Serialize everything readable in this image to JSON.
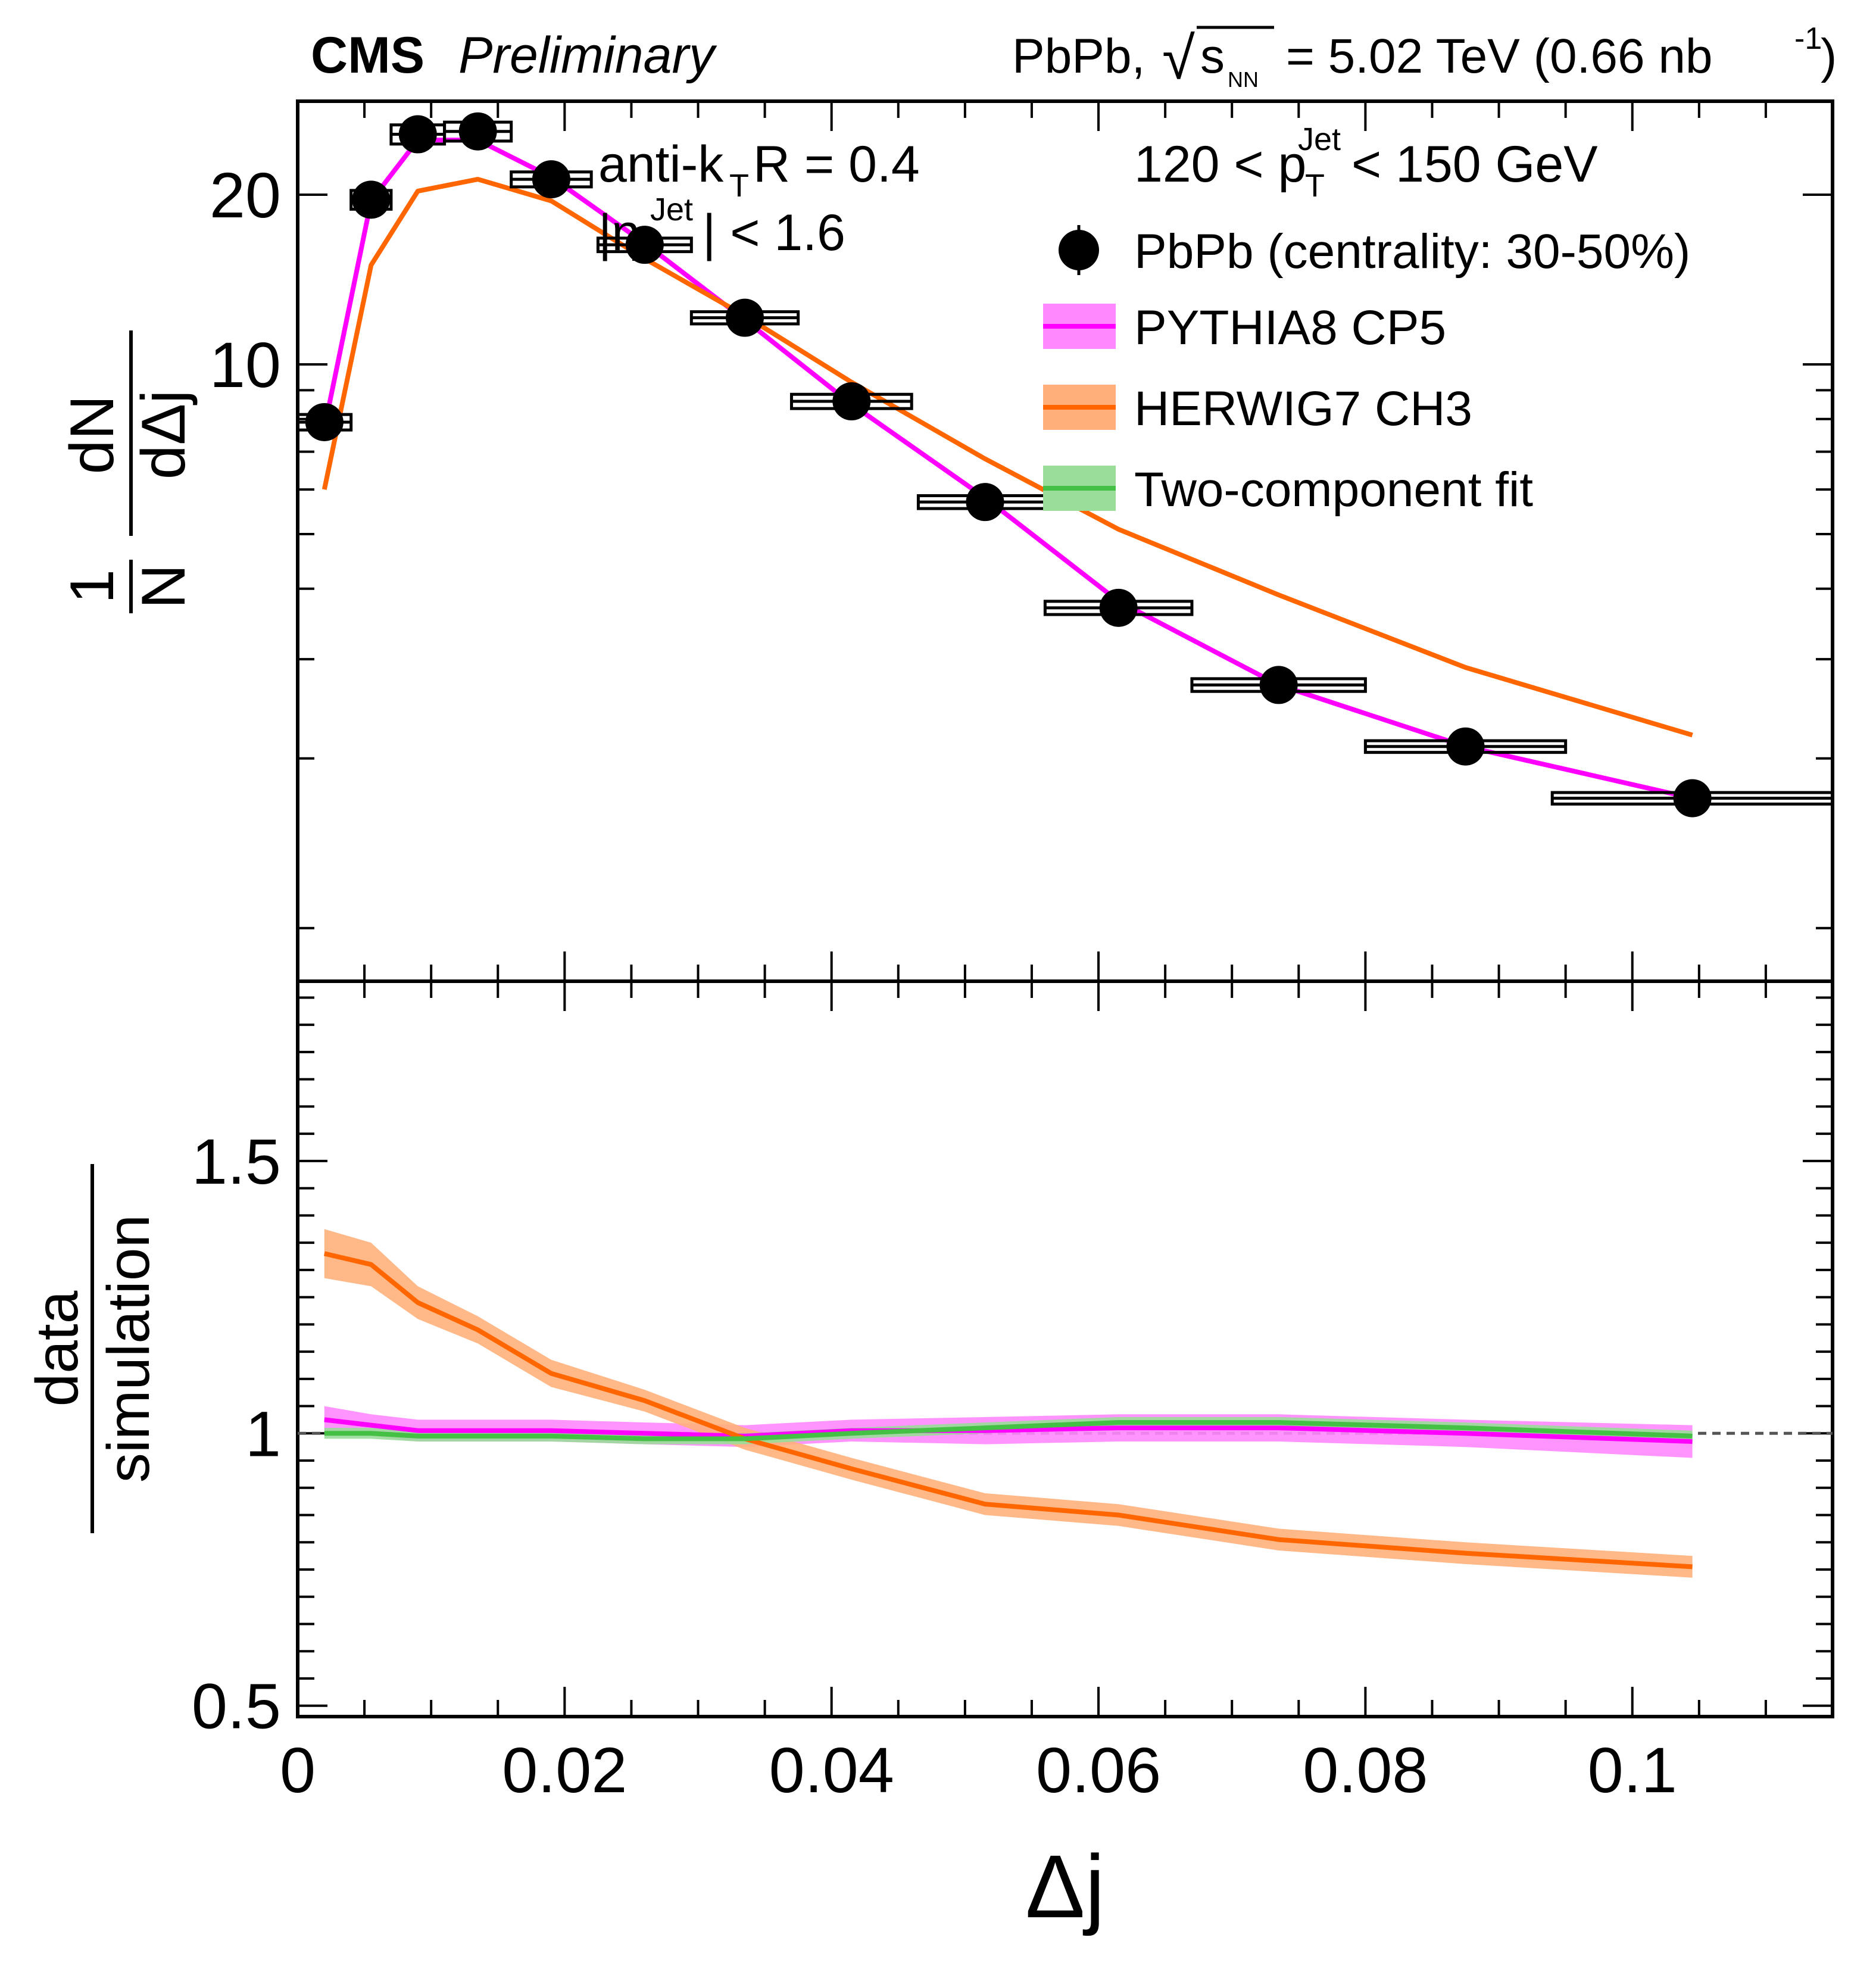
{
  "header": {
    "experiment": "CMS",
    "status": "Preliminary",
    "collision": "PbPb,",
    "sqrt_symbol": "√",
    "s_label": "s",
    "nn_label": "NN",
    "energy": "= 5.02 TeV (0.66 nb",
    "lumi_exp": "-1",
    "lumi_close": ")"
  },
  "annotations": {
    "algo_main": "anti-k",
    "algo_sub": "T",
    "algo_rest": " R = 0.4",
    "eta_open": "|η",
    "eta_sup": "Jet",
    "eta_rest": "| < 1.6",
    "pt_low": "120 < p",
    "pt_sub": "T",
    "pt_sup": "Jet",
    "pt_high": " < 150 GeV"
  },
  "legend": [
    {
      "label": "PbPb (centrality: 30-50%)",
      "kind": "marker",
      "color": "#000000"
    },
    {
      "label": "PYTHIA8 CP5",
      "kind": "band",
      "color": "#ff00ff",
      "band_color": "#ff88ff"
    },
    {
      "label": "HERWIG7 CH3",
      "kind": "band",
      "color": "#ff6600",
      "band_color": "#ffb07a"
    },
    {
      "label": "Two-component fit",
      "kind": "band",
      "color": "#44c044",
      "band_color": "#99dd99"
    }
  ],
  "chart_data": [
    {
      "type": "line",
      "panel": "top",
      "ylabel_num": "1",
      "ylabel_den": "N",
      "ylabel_frac_num": "dN",
      "ylabel_frac_den": "dΔj",
      "xlim": [
        0,
        0.115
      ],
      "ylim": [
        0.805,
        29.3
      ],
      "scale": "log",
      "y_ticks": [
        10,
        20
      ],
      "y_tick_labels": [
        "10",
        "20"
      ],
      "data": {
        "name": "PbPb (centrality: 30-50%)",
        "x": [
          0.002,
          0.0055,
          0.009,
          0.0135,
          0.019,
          0.026,
          0.0335,
          0.0415,
          0.0515,
          0.0615,
          0.0735,
          0.0875,
          0.1045
        ],
        "xerr": [
          0.002,
          0.0015,
          0.002,
          0.0025,
          0.003,
          0.0035,
          0.004,
          0.0045,
          0.005,
          0.0055,
          0.0065,
          0.0075,
          0.0105
        ],
        "y": [
          7.9,
          19.6,
          25.6,
          25.9,
          21.3,
          16.3,
          12.1,
          8.6,
          5.7,
          3.7,
          2.7,
          2.1,
          1.7
        ],
        "syst": [
          0.25,
          0.75,
          1.0,
          1.0,
          0.65,
          0.45,
          0.3,
          0.25,
          0.15,
          0.1,
          0.07,
          0.05,
          0.04
        ]
      },
      "series": [
        {
          "name": "PYTHIA8 CP5",
          "color": "#ff00ff",
          "x": [
            0.002,
            0.0055,
            0.009,
            0.0135,
            0.019,
            0.026,
            0.0335,
            0.0415,
            0.0515,
            0.0615,
            0.0735,
            0.0875,
            0.1045
          ],
          "y": [
            7.7,
            19.5,
            25.0,
            25.0,
            21.5,
            16.4,
            12.0,
            8.5,
            5.8,
            3.8,
            2.7,
            2.1,
            1.7
          ]
        },
        {
          "name": "HERWIG7 CH3",
          "color": "#ff6600",
          "x": [
            0.002,
            0.0055,
            0.009,
            0.0135,
            0.019,
            0.026,
            0.0335,
            0.0415,
            0.0515,
            0.0615,
            0.0735,
            0.0875,
            0.1045
          ],
          "y": [
            6.0,
            15.0,
            20.3,
            21.3,
            19.5,
            15.4,
            12.2,
            9.3,
            6.8,
            5.1,
            3.9,
            2.9,
            2.2
          ]
        }
      ]
    },
    {
      "type": "line",
      "panel": "bottom",
      "ylabel_num": "data",
      "ylabel_den": "simulation",
      "xlabel": "Δj",
      "xlim": [
        0,
        0.115
      ],
      "ylim": [
        0.48,
        1.83
      ],
      "y_ticks": [
        0.5,
        1.0,
        1.5
      ],
      "y_tick_labels": [
        "0.5",
        "1",
        "1.5"
      ],
      "x_ticks": [
        0,
        0.02,
        0.04,
        0.06,
        0.08,
        0.1
      ],
      "x_tick_labels": [
        "0",
        "0.02",
        "0.04",
        "0.06",
        "0.08",
        "0.1"
      ],
      "reference_line": 1.0,
      "series": [
        {
          "name": "PYTHIA8 CP5",
          "color": "#ff00ff",
          "band_color": "#ff88ff",
          "x": [
            0.002,
            0.0055,
            0.009,
            0.0135,
            0.019,
            0.026,
            0.0335,
            0.0415,
            0.0515,
            0.0615,
            0.0735,
            0.0875,
            0.1045
          ],
          "y": [
            1.025,
            1.015,
            1.005,
            1.005,
            1.005,
            1.0,
            0.995,
            1.005,
            1.005,
            1.01,
            1.01,
            1.0,
            0.985
          ],
          "err": [
            0.025,
            0.02,
            0.02,
            0.02,
            0.02,
            0.02,
            0.02,
            0.02,
            0.025,
            0.025,
            0.025,
            0.025,
            0.03
          ]
        },
        {
          "name": "HERWIG7 CH3",
          "color": "#ff6600",
          "band_color": "#ffb07a",
          "x": [
            0.002,
            0.0055,
            0.009,
            0.0135,
            0.019,
            0.026,
            0.0335,
            0.0415,
            0.0515,
            0.0615,
            0.0735,
            0.0875,
            0.1045
          ],
          "y": [
            1.33,
            1.31,
            1.24,
            1.19,
            1.11,
            1.06,
            0.99,
            0.935,
            0.87,
            0.85,
            0.805,
            0.78,
            0.755
          ],
          "err": [
            0.045,
            0.04,
            0.03,
            0.025,
            0.025,
            0.02,
            0.02,
            0.02,
            0.02,
            0.02,
            0.02,
            0.02,
            0.02
          ]
        },
        {
          "name": "Two-component fit",
          "color": "#44c044",
          "band_color": "#99dd99",
          "x": [
            0.002,
            0.0055,
            0.009,
            0.0135,
            0.019,
            0.026,
            0.0335,
            0.0415,
            0.0515,
            0.0615,
            0.0735,
            0.0875,
            0.1045
          ],
          "y": [
            1.0,
            1.0,
            0.995,
            0.995,
            0.995,
            0.99,
            0.99,
            1.0,
            1.01,
            1.02,
            1.02,
            1.01,
            0.995
          ],
          "err": [
            0.01,
            0.01,
            0.01,
            0.01,
            0.01,
            0.01,
            0.01,
            0.01,
            0.01,
            0.01,
            0.01,
            0.01,
            0.01
          ]
        }
      ]
    }
  ]
}
